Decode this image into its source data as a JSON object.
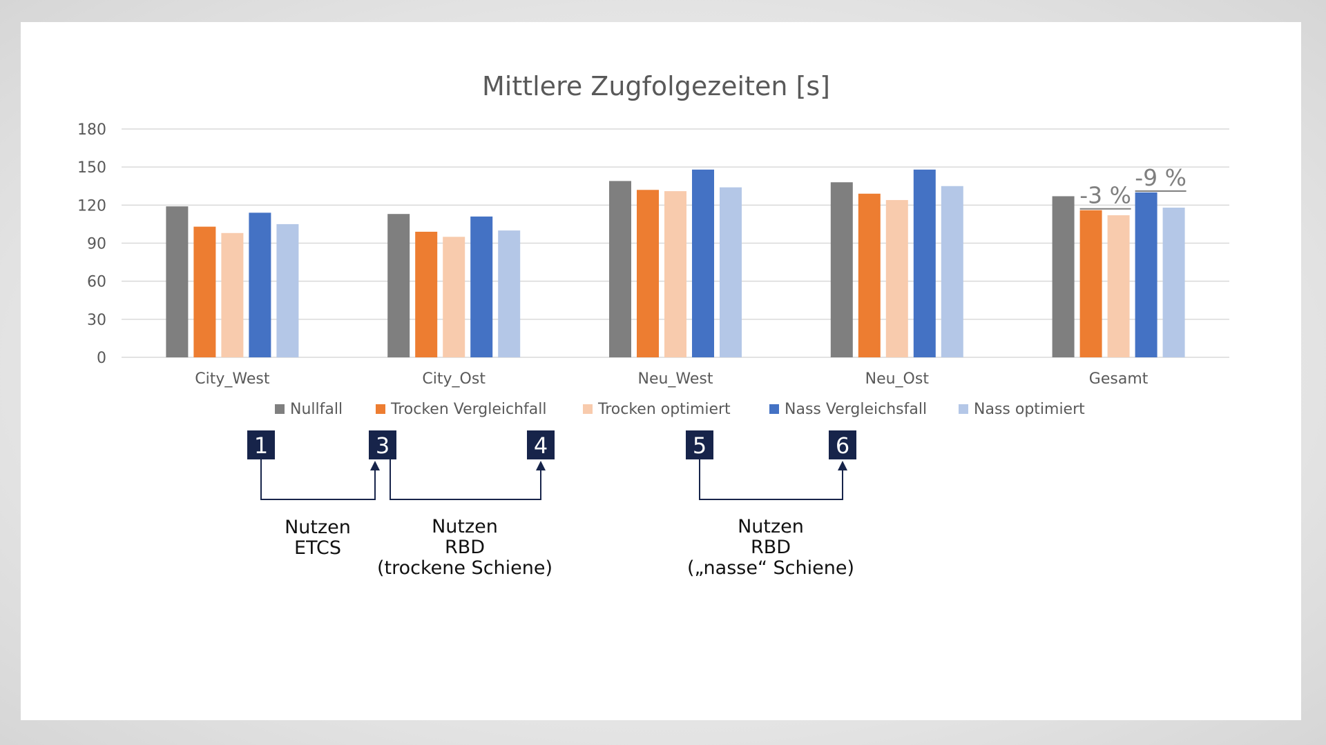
{
  "chart_data": {
    "type": "bar",
    "title": "Mittlere Zugfolgezeiten [s]",
    "categories": [
      "City_West",
      "City_Ost",
      "Neu_West",
      "Neu_Ost",
      "Gesamt"
    ],
    "ylim": [
      0,
      180
    ],
    "yticks": [
      "0",
      "30",
      "60",
      "90",
      "120",
      "150",
      "180"
    ],
    "grid": true,
    "legend_position": "bottom",
    "series": [
      {
        "name": "Nullfall",
        "color": "#7f7f7f",
        "values": [
          119,
          113,
          139,
          138,
          127
        ]
      },
      {
        "name": "Trocken Vergleichfall",
        "color": "#ed7d31",
        "values": [
          103,
          99,
          132,
          129,
          116
        ]
      },
      {
        "name": "Trocken optimiert",
        "color": "#f8cbad",
        "values": [
          98,
          95,
          131,
          124,
          112
        ]
      },
      {
        "name": "Nass Vergleichsfall",
        "color": "#4472c4",
        "values": [
          114,
          111,
          148,
          148,
          130
        ]
      },
      {
        "name": "Nass optimiert",
        "color": "#b4c7e7",
        "values": [
          105,
          100,
          134,
          135,
          118
        ]
      }
    ],
    "annotations": [
      {
        "text": "-3 %",
        "category": "Gesamt",
        "from_series": "Trocken Vergleichfall",
        "to_series": "Trocken optimiert"
      },
      {
        "text": "-9 %",
        "category": "Gesamt",
        "from_series": "Nass Vergleichsfall",
        "to_series": "Nass optimiert"
      }
    ]
  },
  "scenario_boxes": [
    {
      "number": "1"
    },
    {
      "number": "3"
    },
    {
      "number": "4"
    },
    {
      "number": "5"
    },
    {
      "number": "6"
    }
  ],
  "captions": [
    {
      "lines": [
        "Nutzen",
        "ETCS"
      ]
    },
    {
      "lines": [
        "Nutzen",
        "RBD",
        "(trockene Schiene)"
      ]
    },
    {
      "lines": [
        "Nutzen",
        "RBD",
        "(„nasse“ Schiene)"
      ]
    }
  ],
  "colors": {
    "box_fill": "#17244a",
    "arrow": "#17244a",
    "grid": "#d9d9d9"
  }
}
